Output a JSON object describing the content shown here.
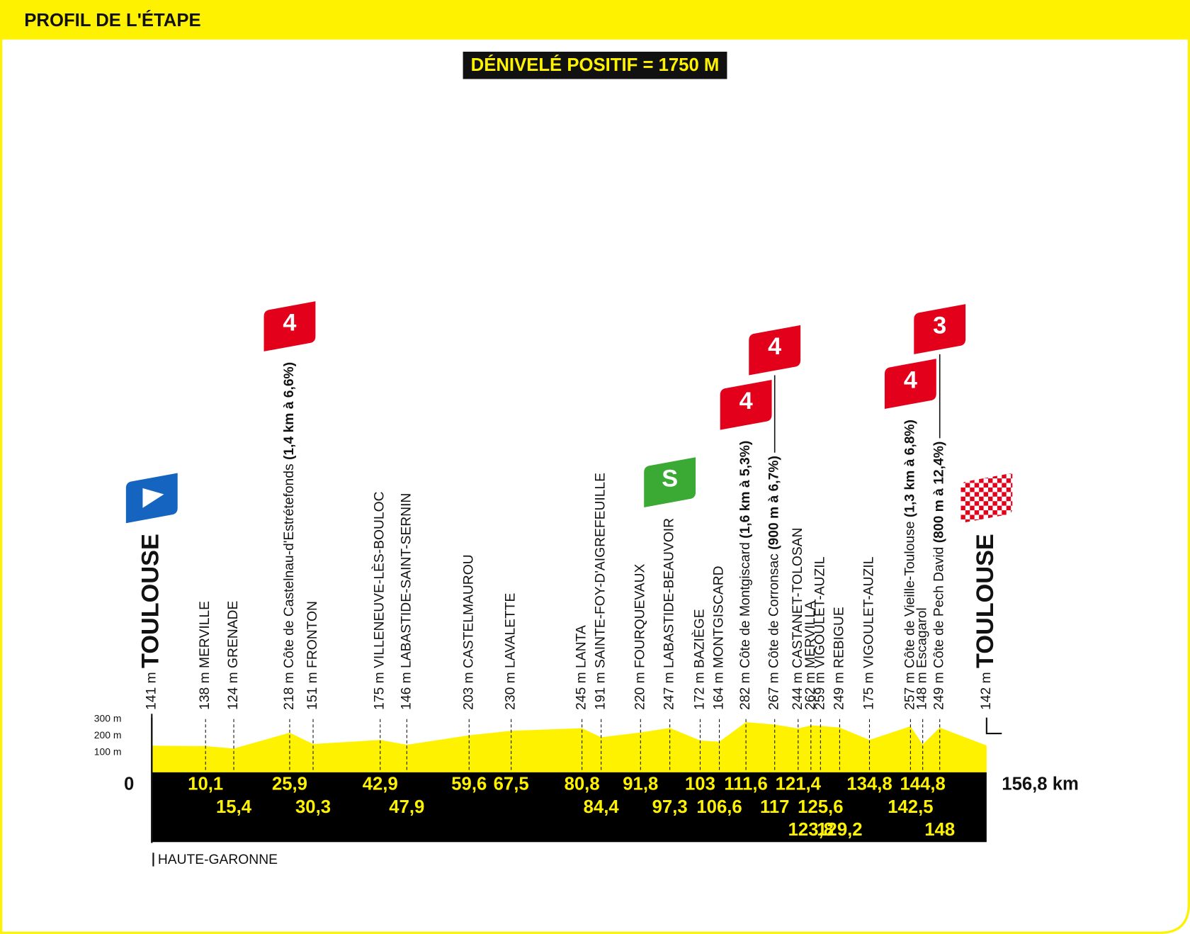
{
  "header": {
    "title": "PROFIL DE L'ÉTAPE"
  },
  "chart_data": {
    "type": "profile",
    "subtitle": "DÉNIVELÉ POSITIF = 1750 M",
    "xlim": [
      0,
      156.8
    ],
    "ylim": [
      0,
      300
    ],
    "yticks": [
      {
        "value": 100,
        "label": "100 m"
      },
      {
        "value": 200,
        "label": "200 m"
      },
      {
        "value": 300,
        "label": "300 m"
      }
    ],
    "x": [
      0,
      10.1,
      15.4,
      25.9,
      30.3,
      42.9,
      47.9,
      59.6,
      67.5,
      80.8,
      84.4,
      91.8,
      97.3,
      103,
      106.6,
      111.6,
      117,
      121.4,
      123.8,
      125.6,
      129.2,
      134.8,
      142.5,
      144.8,
      148,
      156.8
    ],
    "x_labels": [
      "0",
      "10,1",
      "15,4",
      "25,9",
      "30,3",
      "42,9",
      "47,9",
      "59,6",
      "67,5",
      "80,8",
      "84,4",
      "91,8",
      "97,3",
      "103",
      "106,6",
      "111,6",
      "117",
      "121,4",
      "123,8",
      "125,6",
      "129,2",
      "134,8",
      "142,5",
      "144,8",
      "148",
      "156,8 km"
    ],
    "series": [
      {
        "color": "#fff200",
        "values": [
          141,
          138,
          124,
          218,
          151,
          175,
          146,
          203,
          230,
          245,
          191,
          220,
          247,
          172,
          164,
          282,
          267,
          244,
          262,
          259,
          249,
          175,
          257,
          148,
          249,
          142
        ],
        "value_labels": [
          "141 m",
          "138 m",
          "124 m",
          "218 m",
          "151 m",
          "175 m",
          "146 m",
          "203 m",
          "230 m",
          "245 m",
          "191 m",
          "220 m",
          "247 m",
          "172 m",
          "164 m",
          "282 m",
          "267 m",
          "244 m",
          "262 m",
          "259 m",
          "249 m",
          "175 m",
          "257 m",
          "148 m",
          "249 m",
          "142 m"
        ]
      }
    ],
    "places": [
      "TOULOUSE",
      "MERVILLE",
      "GRENADE",
      "Côte de Castelnau-d'Estrétefonds",
      "FRONTON",
      "VILLENEUVE-LÈS-BOULOC",
      "LABASTIDE-SAINT-SERNIN",
      "CASTELMAUROU",
      "LAVALETTE",
      "LANTA",
      "SAINTE-FOY-D'AIGREFEUILLE",
      "FOURQUEVAUX",
      "LABASTIDE-BEAUVOIR",
      "BAZIÈGE",
      "MONTGISCARD",
      "Côte de Montgiscard",
      "Côte de Corronsac",
      "CASTANET-TOLOSAN",
      "MERVILLA",
      "VIGOULET-AUZIL",
      "REBIGUE",
      "VIGOULET-AUZIL",
      "Côte de Vieille-Toulouse",
      "Escagarol",
      "Côte de Pech David",
      "TOULOUSE"
    ],
    "climb_details": [
      null,
      null,
      null,
      "(1,4 km à 6,6%)",
      null,
      null,
      null,
      null,
      null,
      null,
      null,
      null,
      null,
      null,
      null,
      "(1,6 km à 5,3%)",
      "(900 m à 6,7%)",
      null,
      null,
      null,
      null,
      null,
      "(1,3 km à 6,8%)",
      null,
      "(800 m à 12,4%)",
      null
    ],
    "flags": [
      null,
      null,
      null,
      "4",
      null,
      null,
      null,
      null,
      null,
      null,
      null,
      null,
      "S",
      null,
      null,
      "4",
      "4",
      null,
      null,
      null,
      null,
      null,
      "4",
      null,
      "3",
      null
    ],
    "region": "HAUTE-GARONNE"
  }
}
